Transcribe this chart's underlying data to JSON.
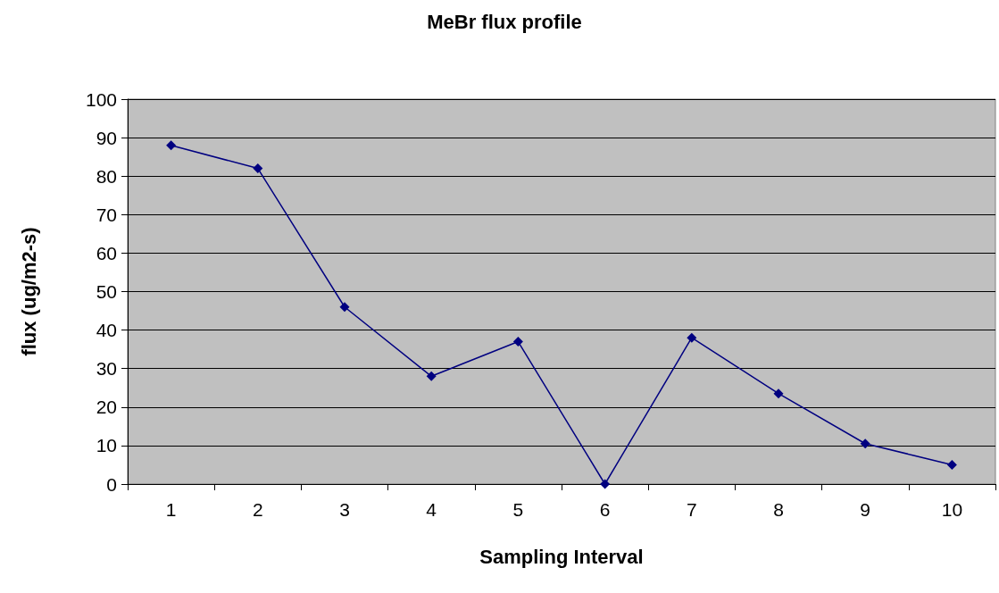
{
  "chart_data": {
    "type": "line",
    "title": "MeBr flux profile",
    "xlabel": "Sampling Interval",
    "ylabel": "flux (ug/m2-s)",
    "categories": [
      "1",
      "2",
      "3",
      "4",
      "5",
      "6",
      "7",
      "8",
      "9",
      "10"
    ],
    "series": [
      {
        "color": "#000080",
        "values": [
          88,
          82,
          46,
          28,
          37,
          0,
          38,
          23.5,
          10.5,
          5
        ]
      }
    ],
    "ylim": [
      0,
      100
    ],
    "yticks": [
      0,
      10,
      20,
      30,
      40,
      50,
      60,
      70,
      80,
      90,
      100
    ],
    "grid": "y",
    "marker": "diamond",
    "line_style": "solid"
  }
}
